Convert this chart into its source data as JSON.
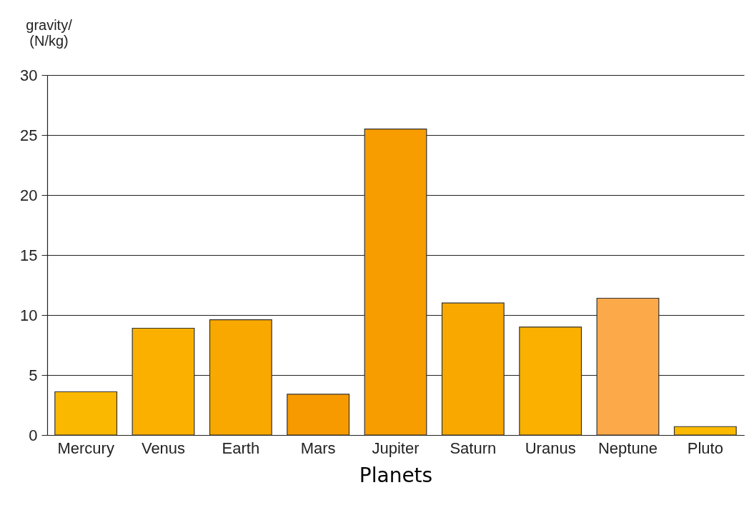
{
  "chart_data": {
    "type": "bar",
    "xlabel": "Planets",
    "ylabel": "gravity/ (N/kg)",
    "categories": [
      "Mercury",
      "Venus",
      "Earth",
      "Mars",
      "Jupiter",
      "Saturn",
      "Uranus",
      "Neptune",
      "Pluto"
    ],
    "values": [
      3.6,
      8.9,
      9.6,
      3.4,
      25.5,
      11.0,
      9.0,
      11.4,
      0.7
    ],
    "colors": [
      "#fbb800",
      "#fbb000",
      "#f9a800",
      "#f79a00",
      "#f79d00",
      "#f9a800",
      "#fbb000",
      "#fca94a",
      "#fbba00"
    ],
    "ylim": [
      0,
      30
    ],
    "yticks": [
      0,
      5,
      10,
      15,
      20,
      25,
      30
    ],
    "grid": "y"
  }
}
